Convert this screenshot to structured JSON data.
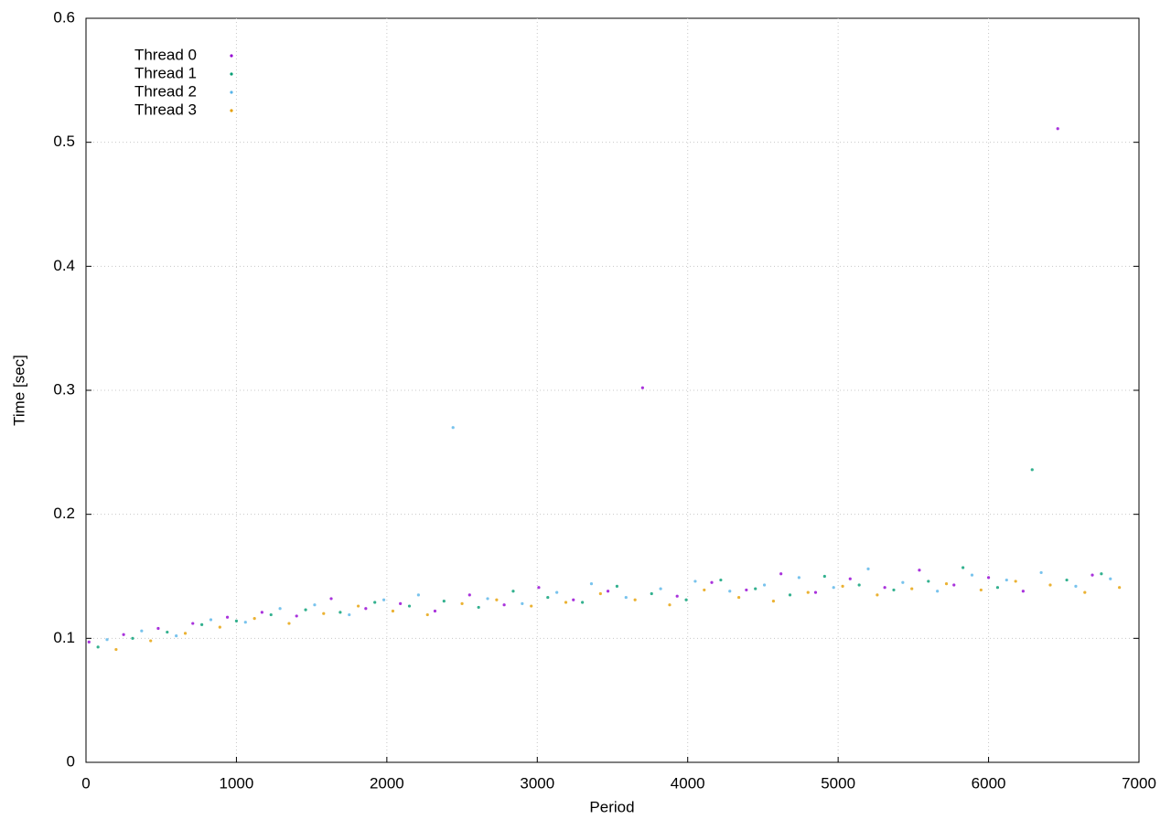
{
  "chart_data": {
    "type": "scatter",
    "xlabel": "Period",
    "ylabel": "Time [sec]",
    "xlim": [
      0,
      7000
    ],
    "xticks": [
      0,
      1000,
      2000,
      3000,
      4000,
      5000,
      6000,
      7000
    ],
    "ylim": [
      0,
      0.6
    ],
    "yticks": [
      0,
      0.1,
      0.2,
      0.3,
      0.4,
      0.5,
      0.6
    ],
    "grid": true,
    "legend": "top-left",
    "series": [
      {
        "name": "Thread 0",
        "color": "#9400d3",
        "x": [
          20,
          250,
          480,
          710,
          940,
          1170,
          1400,
          1630,
          1860,
          2090,
          2320,
          2550,
          2780,
          3010,
          3240,
          3470,
          3700,
          3930,
          4160,
          4390,
          4620,
          4850,
          5080,
          5310,
          5540,
          5770,
          6000,
          6230,
          6460,
          6690
        ],
        "values": [
          0.097,
          0.103,
          0.108,
          0.112,
          0.117,
          0.121,
          0.118,
          0.132,
          0.124,
          0.128,
          0.122,
          0.135,
          0.127,
          0.141,
          0.131,
          0.138,
          0.302,
          0.134,
          0.145,
          0.139,
          0.152,
          0.137,
          0.148,
          0.141,
          0.155,
          0.143,
          0.149,
          0.138,
          0.511,
          0.151
        ]
      },
      {
        "name": "Thread 1",
        "color": "#009e73",
        "x": [
          80,
          310,
          540,
          770,
          1000,
          1230,
          1460,
          1690,
          1920,
          2150,
          2380,
          2610,
          2840,
          3070,
          3300,
          3530,
          3760,
          3990,
          4220,
          4450,
          4680,
          4910,
          5140,
          5370,
          5600,
          5830,
          6060,
          6290,
          6520,
          6750
        ],
        "values": [
          0.093,
          0.1,
          0.105,
          0.111,
          0.114,
          0.119,
          0.123,
          0.121,
          0.129,
          0.126,
          0.13,
          0.125,
          0.138,
          0.133,
          0.129,
          0.142,
          0.136,
          0.131,
          0.147,
          0.14,
          0.135,
          0.15,
          0.143,
          0.139,
          0.146,
          0.157,
          0.141,
          0.236,
          0.147,
          0.152
        ]
      },
      {
        "name": "Thread 2",
        "color": "#56b4e9",
        "x": [
          140,
          370,
          600,
          830,
          1060,
          1290,
          1520,
          1750,
          1980,
          2210,
          2440,
          2670,
          2900,
          3130,
          3360,
          3590,
          3820,
          4050,
          4280,
          4510,
          4740,
          4970,
          5200,
          5430,
          5660,
          5890,
          6120,
          6350,
          6580,
          6810
        ],
        "values": [
          0.099,
          0.106,
          0.102,
          0.115,
          0.113,
          0.124,
          0.127,
          0.119,
          0.131,
          0.135,
          0.27,
          0.132,
          0.128,
          0.137,
          0.144,
          0.133,
          0.14,
          0.146,
          0.138,
          0.143,
          0.149,
          0.141,
          0.156,
          0.145,
          0.138,
          0.151,
          0.147,
          0.153,
          0.142,
          0.148
        ]
      },
      {
        "name": "Thread 3",
        "color": "#e69f00",
        "x": [
          200,
          430,
          660,
          890,
          1120,
          1350,
          1580,
          1810,
          2040,
          2270,
          2500,
          2730,
          2960,
          3190,
          3420,
          3650,
          3880,
          4110,
          4340,
          4570,
          4800,
          5030,
          5260,
          5490,
          5720,
          5950,
          6180,
          6410,
          6640,
          6870
        ],
        "values": [
          0.091,
          0.098,
          0.104,
          0.109,
          0.116,
          0.112,
          0.12,
          0.126,
          0.122,
          0.119,
          0.128,
          0.131,
          0.126,
          0.129,
          0.136,
          0.131,
          0.127,
          0.139,
          0.133,
          0.13,
          0.137,
          0.142,
          0.135,
          0.14,
          0.144,
          0.139,
          0.146,
          0.143,
          0.137,
          0.141
        ]
      }
    ]
  }
}
